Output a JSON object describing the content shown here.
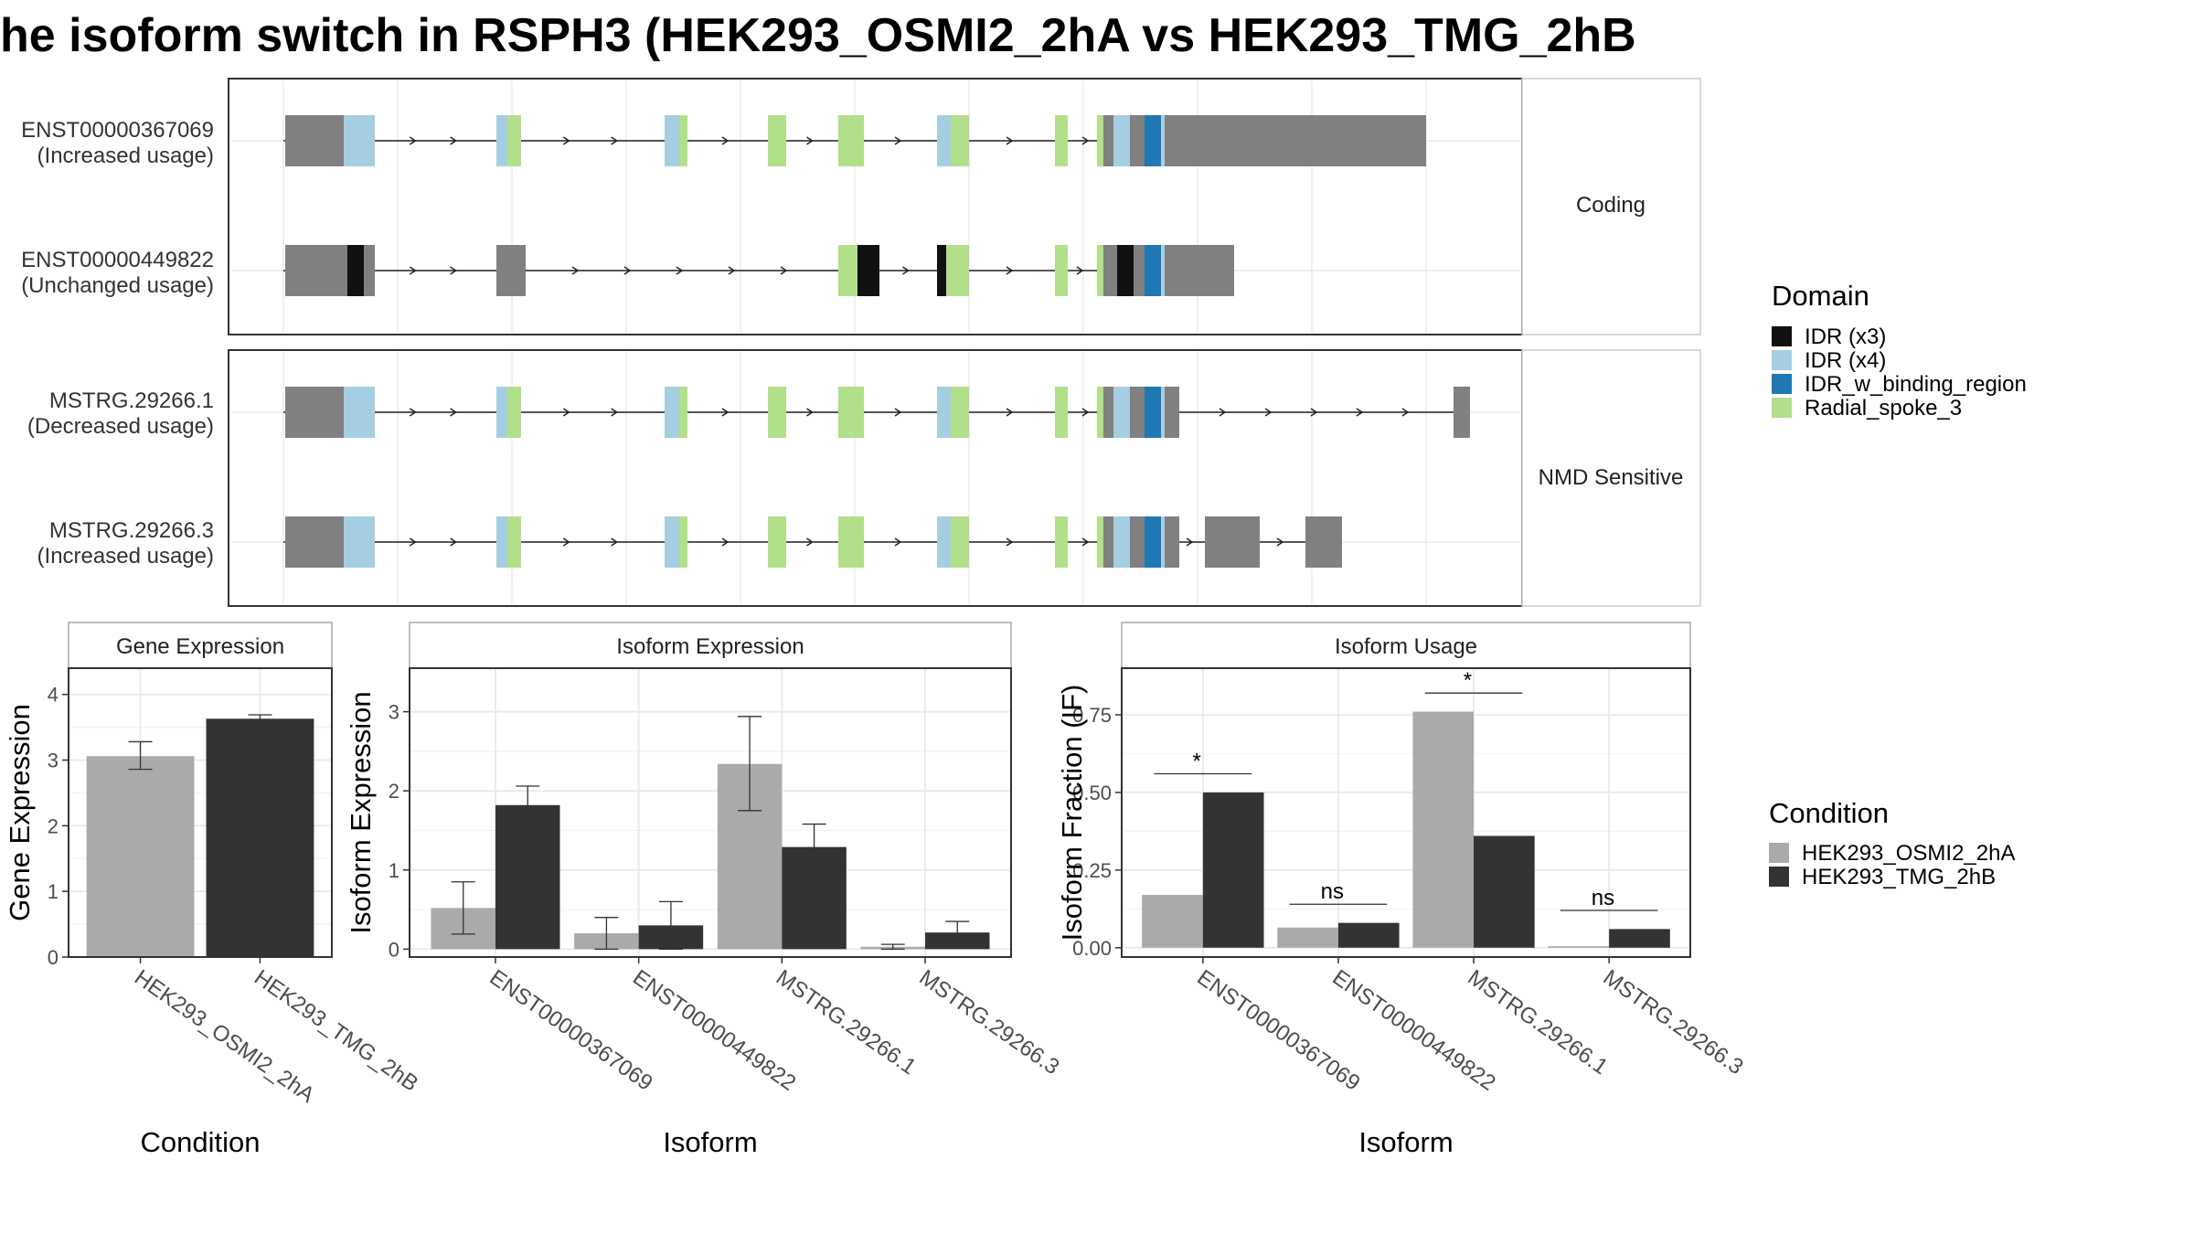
{
  "title": "he isoform switch in RSPH3 (HEK293_OSMI2_2hA vs HEK293_TMG_2hB",
  "colors": {
    "utr": "#808080",
    "idr_x3": "#111111",
    "idr_x4": "#a6cee3",
    "idr_binding": "#1f78b4",
    "radial_spoke": "#b2df8a",
    "cond_a": "#aaaaaa",
    "cond_b": "#333333",
    "strip_bg": "#ffffff",
    "panel_border": "#333333",
    "grid": "#ebebeb"
  },
  "structure": {
    "facets": [
      {
        "label": "Coding"
      },
      {
        "label": "NMD Sensitive"
      }
    ],
    "transcripts": [
      {
        "id": "ENST00000367069",
        "status": "(Increased usage)",
        "facet": 0
      },
      {
        "id": "ENST00000449822",
        "status": "(Unchanged usage)",
        "facet": 0
      },
      {
        "id": "MSTRG.29266.1",
        "status": "(Decreased usage)",
        "facet": 1
      },
      {
        "id": "MSTRG.29266.3",
        "status": "(Increased usage)",
        "facet": 1
      }
    ]
  },
  "legend_domain": {
    "title": "Domain",
    "items": [
      {
        "label": "IDR (x3)",
        "color": "#111111"
      },
      {
        "label": "IDR (x4)",
        "color": "#a6cee3"
      },
      {
        "label": "IDR_w_binding_region",
        "color": "#1f78b4"
      },
      {
        "label": "Radial_spoke_3",
        "color": "#b2df8a"
      }
    ]
  },
  "legend_condition": {
    "title": "Condition",
    "items": [
      {
        "label": "HEK293_OSMI2_2hA",
        "color": "#aaaaaa"
      },
      {
        "label": "HEK293_TMG_2hB",
        "color": "#333333"
      }
    ]
  },
  "chart_data": [
    {
      "type": "bar",
      "title": "Gene Expression",
      "xlabel": "Condition",
      "ylabel": "Gene Expression",
      "ylim": [
        0,
        4.4
      ],
      "yticks": [
        0,
        1,
        2,
        3,
        4
      ],
      "categories": [
        "HEK293_OSMI2_2hA",
        "HEK293_TMG_2hB"
      ],
      "values": [
        3.06,
        3.63
      ],
      "errors": [
        [
          2.86,
          3.28
        ],
        [
          3.58,
          3.69
        ]
      ]
    },
    {
      "type": "bar",
      "title": "Isoform Expression",
      "xlabel": "Isoform",
      "ylabel": "Isoform Expression",
      "ylim": [
        -0.1,
        3.55
      ],
      "yticks": [
        0,
        1,
        2,
        3
      ],
      "categories": [
        "ENST00000367069",
        "ENST00000449822",
        "MSTRG.29266.1",
        "MSTRG.29266.3"
      ],
      "series": [
        {
          "name": "HEK293_OSMI2_2hA",
          "values": [
            0.52,
            0.2,
            2.34,
            0.03
          ],
          "errors": [
            [
              0.19,
              0.85
            ],
            [
              0.0,
              0.4
            ],
            [
              1.75,
              2.94
            ],
            [
              0.0,
              0.06
            ]
          ]
        },
        {
          "name": "HEK293_TMG_2hB",
          "values": [
            1.82,
            0.3,
            1.29,
            0.21
          ],
          "errors": [
            [
              1.58,
              2.06
            ],
            [
              0.0,
              0.6
            ],
            [
              1.0,
              1.58
            ],
            [
              0.08,
              0.35
            ]
          ]
        }
      ]
    },
    {
      "type": "bar",
      "title": "Isoform Usage",
      "xlabel": "Isoform",
      "ylabel": "Isoform Fraction (IF)",
      "ylim": [
        -0.03,
        0.9
      ],
      "yticks": [
        "0.00",
        "0.25",
        "0.50",
        "0.75"
      ],
      "categories": [
        "ENST00000367069",
        "ENST00000449822",
        "MSTRG.29266.1",
        "MSTRG.29266.3"
      ],
      "series": [
        {
          "name": "HEK293_OSMI2_2hA",
          "values": [
            0.17,
            0.065,
            0.76,
            0.005
          ]
        },
        {
          "name": "HEK293_TMG_2hB",
          "values": [
            0.5,
            0.08,
            0.36,
            0.06
          ]
        }
      ],
      "significance": [
        "*",
        "ns",
        "*",
        "ns"
      ]
    }
  ]
}
